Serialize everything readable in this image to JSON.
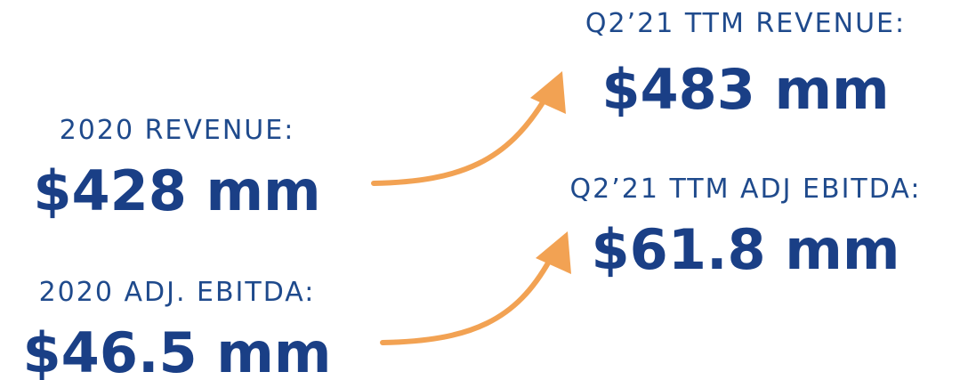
{
  "metrics": [
    {
      "label": "2020 REVENUE:",
      "value": "$428 mm"
    },
    {
      "label": "2020 ADJ. EBITDA:",
      "value": "$46.5 mm"
    },
    {
      "label": "Q2’21 TTM REVENUE:",
      "value": "$483 mm"
    },
    {
      "label": "Q2’21 TTM ADJ EBITDA:",
      "value": "$61.8 mm"
    }
  ]
}
